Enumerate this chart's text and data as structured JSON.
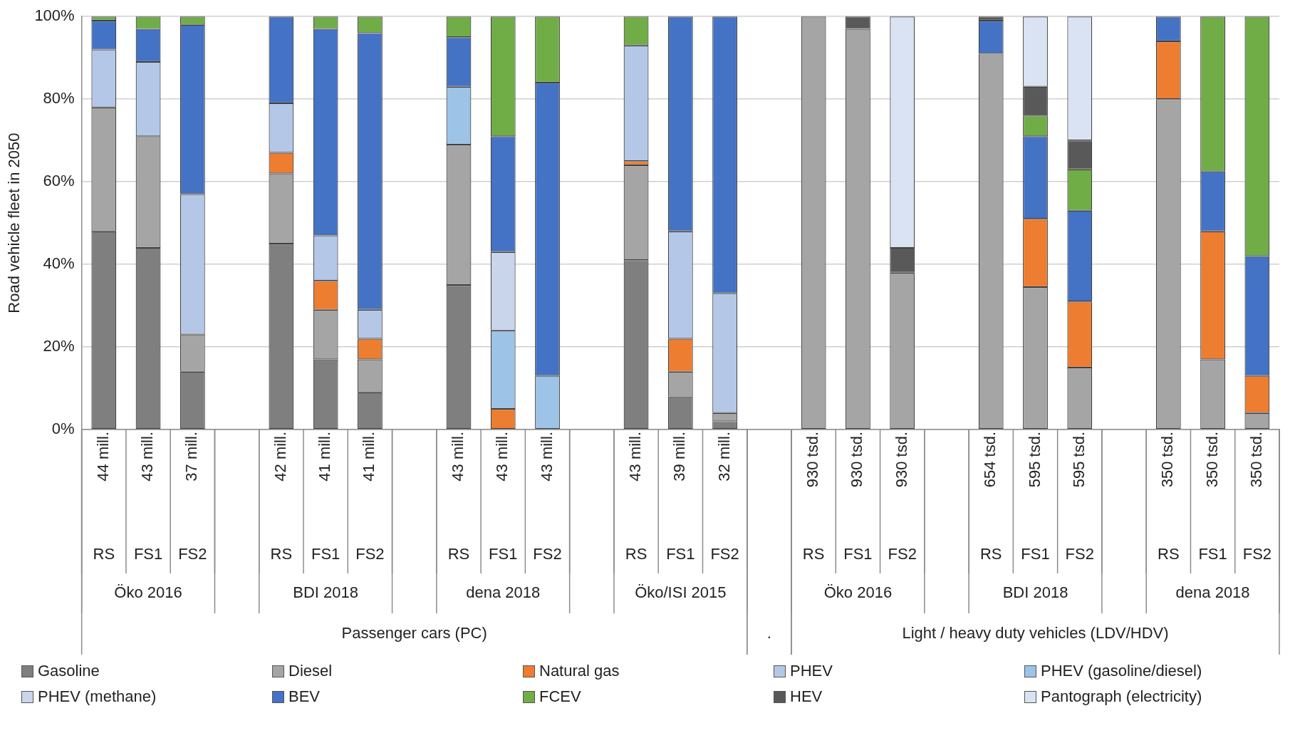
{
  "chart_data": {
    "type": "bar",
    "stacked": true,
    "ylabel": "Road vehicle fleet in 2050",
    "legend": "bottom",
    "grid": "y",
    "categories": [
      "44 mill.",
      "43 mill.",
      "37 mill.",
      null,
      "42 mill.",
      "41 mill.",
      "41 mill.",
      null,
      "43 mill.",
      "43 mill.",
      "43 mill.",
      null,
      "43 mill.",
      "39 mill.",
      "32 mill.",
      null,
      "930 tsd.",
      "930 tsd.",
      "930 tsd.",
      null,
      "654 tsd.",
      "595 tsd.",
      "595 tsd.",
      null,
      "350 tsd.",
      "350 tsd.",
      "350 tsd."
    ],
    "ylim": [
      0,
      100
    ],
    "yticks": [
      {
        "value": 0,
        "label": "0%"
      },
      {
        "value": 20,
        "label": "20%"
      },
      {
        "value": 40,
        "label": "40%"
      },
      {
        "value": 60,
        "label": "60%"
      },
      {
        "value": 80,
        "label": "80%"
      },
      {
        "value": 100,
        "label": "100%"
      }
    ],
    "series": [
      {
        "name": "Gasoline",
        "color": "#7f7f7f",
        "values": [
          48,
          44,
          14,
          null,
          45,
          17,
          9,
          null,
          35,
          null,
          null,
          null,
          41,
          8,
          2,
          null,
          null,
          null,
          null,
          null,
          null,
          null,
          null,
          null,
          null,
          null,
          null
        ]
      },
      {
        "name": "Diesel",
        "color": "#a5a5a5",
        "values": [
          30,
          27,
          9,
          null,
          17,
          12,
          8,
          null,
          34,
          null,
          null,
          null,
          23,
          6,
          2,
          null,
          100,
          97,
          38,
          null,
          91,
          34.5,
          15,
          null,
          80,
          17,
          4
        ]
      },
      {
        "name": "Natural gas",
        "color": "#ed7d31",
        "values": [
          null,
          null,
          null,
          null,
          5,
          7,
          5,
          null,
          null,
          5,
          null,
          null,
          1,
          8,
          null,
          null,
          null,
          null,
          null,
          null,
          null,
          16.5,
          16,
          null,
          14,
          31,
          9
        ]
      },
      {
        "name": "PHEV",
        "color": "#b4c7e7",
        "values": [
          14,
          18,
          34,
          null,
          12,
          11,
          7,
          null,
          null,
          null,
          null,
          null,
          28,
          26,
          29,
          null,
          null,
          null,
          null,
          null,
          null,
          null,
          null,
          null,
          null,
          null,
          null
        ]
      },
      {
        "name": "PHEV (gasoline/diesel)",
        "color": "#9dc3e6",
        "values": [
          null,
          null,
          null,
          null,
          null,
          null,
          null,
          null,
          14,
          19,
          13,
          null,
          null,
          null,
          null,
          null,
          null,
          null,
          null,
          null,
          null,
          null,
          null,
          null,
          null,
          null,
          null
        ]
      },
      {
        "name": "PHEV (methane)",
        "color": "#c9d5ea",
        "values": [
          null,
          null,
          null,
          null,
          null,
          null,
          null,
          null,
          null,
          19,
          null,
          null,
          null,
          null,
          null,
          null,
          null,
          null,
          null,
          null,
          null,
          null,
          null,
          null,
          null,
          null,
          null
        ]
      },
      {
        "name": "BEV",
        "color": "#4472c4",
        "values": [
          7,
          8,
          41,
          null,
          21,
          50,
          67,
          null,
          12,
          28,
          71,
          null,
          null,
          52,
          67,
          null,
          null,
          null,
          null,
          null,
          8,
          20,
          22,
          null,
          6,
          14.5,
          29
        ]
      },
      {
        "name": "FCEV",
        "color": "#70ad47",
        "values": [
          1,
          3,
          2,
          null,
          null,
          3,
          4,
          null,
          5,
          29,
          16,
          null,
          7,
          null,
          null,
          null,
          null,
          null,
          null,
          null,
          null,
          5,
          10,
          null,
          null,
          37.5,
          58
        ]
      },
      {
        "name": "HEV",
        "color": "#595959",
        "values": [
          null,
          null,
          null,
          null,
          null,
          null,
          null,
          null,
          null,
          null,
          null,
          null,
          null,
          null,
          null,
          null,
          null,
          3,
          6,
          null,
          1,
          7,
          7,
          null,
          null,
          null,
          null
        ]
      },
      {
        "name": "Pantograph (electricity)",
        "color": "#dae3f3",
        "values": [
          null,
          null,
          null,
          null,
          null,
          null,
          null,
          null,
          null,
          null,
          null,
          null,
          null,
          null,
          null,
          null,
          null,
          null,
          56,
          null,
          null,
          17,
          30,
          null,
          null,
          null,
          null
        ]
      }
    ],
    "annotations": [
      "RS",
      "FS1",
      "FS2",
      "RS",
      "FS1",
      "FS2",
      "RS",
      "FS1",
      "FS2",
      "RS",
      "FS1",
      "FS2",
      "RS",
      "FS1",
      "FS2",
      "RS",
      "FS1",
      "FS2",
      "RS",
      "FS1",
      "FS2",
      "Öko 2016",
      "BDI 2018",
      "dena 2018",
      "Öko/ISI 2015",
      "Öko 2016",
      "BDI 2018",
      "dena 2018",
      "Passenger cars (PC)",
      ".",
      "Light / heavy duty vehicles (LDV/HDV)"
    ]
  }
}
